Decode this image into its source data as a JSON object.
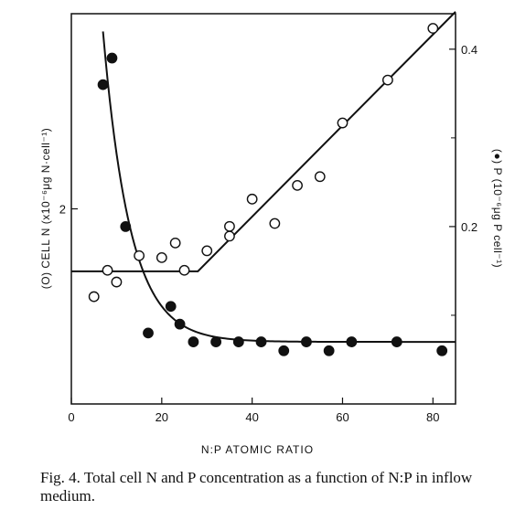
{
  "chart_data": {
    "type": "scatter",
    "xlabel": "N:P ATOMIC RATIO",
    "ylabel_left": "(O) CELL N (x10⁻⁶μg N·cell⁻¹)",
    "ylabel_right": "(●) P (10⁻⁶μg P cell⁻¹)",
    "xlim": [
      0,
      85
    ],
    "ylim_left": [
      0,
      4
    ],
    "ylim_right": [
      0,
      0.44
    ],
    "x_ticks": [
      0,
      20,
      40,
      60,
      80
    ],
    "y_ticks_left": [
      2
    ],
    "y_ticks_right": [
      0.2,
      0.4
    ],
    "series": [
      {
        "name": "Cell N",
        "marker": "open-circle",
        "axis": "left",
        "x": [
          5,
          8,
          10,
          15,
          20,
          23,
          25,
          30,
          35,
          35,
          40,
          45,
          50,
          55,
          60,
          70,
          80
        ],
        "y": [
          1.1,
          1.37,
          1.25,
          1.52,
          1.5,
          1.65,
          1.37,
          1.57,
          1.82,
          1.72,
          2.1,
          1.85,
          2.24,
          2.33,
          2.88,
          3.32,
          3.85
        ]
      },
      {
        "name": "Cell P",
        "marker": "filled-circle",
        "axis": "right",
        "x": [
          7,
          9,
          12,
          17,
          22,
          24,
          27,
          32,
          37,
          42,
          47,
          52,
          57,
          62,
          72,
          82
        ],
        "y": [
          0.36,
          0.39,
          0.2,
          0.08,
          0.11,
          0.09,
          0.07,
          0.07,
          0.07,
          0.07,
          0.06,
          0.07,
          0.06,
          0.07,
          0.07,
          0.06
        ]
      }
    ],
    "fit_lines": [
      {
        "name": "Cell N fit",
        "axis": "left",
        "x": [
          0,
          28,
          85
        ],
        "y": [
          1.36,
          1.36,
          4.02
        ]
      },
      {
        "name": "Cell P fit",
        "axis": "right",
        "curve": "exponential",
        "x_start": 7,
        "x_end": 85,
        "asymptote": 0.07,
        "y_start": 0.42
      }
    ]
  },
  "caption": {
    "text": "Fig. 4.  Total cell N and P concentration as a function of N:P in inflow medium."
  }
}
